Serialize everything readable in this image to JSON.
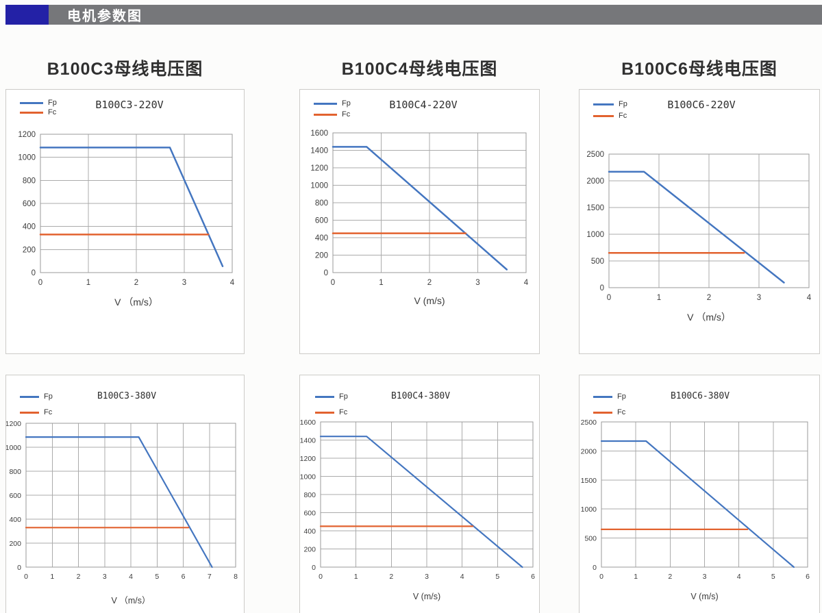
{
  "header": {
    "title": "电机参数图"
  },
  "section_titles": [
    "B100C3母线电压图",
    "B100C4母线电压图",
    "B100C6母线电压图"
  ],
  "colors": {
    "header_bar": "#76777a",
    "header_accent": "#2321a6",
    "fp": "#4476c0",
    "fc": "#e2622f",
    "grid": "#ababab",
    "plot_frame": "#9a9a9a",
    "axis_text": "#3c3c3c"
  },
  "chart_data": [
    {
      "type": "line",
      "title": "B100C3-220V",
      "xlabel": "V （m/s）",
      "grid": true,
      "legend_position": "top-left",
      "xlim": [
        0,
        4
      ],
      "xticks": [
        0,
        1,
        2,
        3,
        4
      ],
      "ylim": [
        0,
        1200
      ],
      "yticks": [
        0,
        200,
        400,
        600,
        800,
        1000,
        1200
      ],
      "series": [
        {
          "name": "Fp",
          "color": "#4476c0",
          "points": [
            [
              0,
              1085
            ],
            [
              2.7,
              1085
            ],
            [
              3.8,
              55
            ]
          ]
        },
        {
          "name": "Fc",
          "color": "#e2622f",
          "points": [
            [
              0,
              330
            ],
            [
              3.5,
              330
            ]
          ]
        }
      ]
    },
    {
      "type": "line",
      "title": "B100C4-220V",
      "xlabel": "V (m/s)",
      "grid": true,
      "legend_position": "top-left",
      "xlim": [
        0,
        4
      ],
      "xticks": [
        0,
        1,
        2,
        3,
        4
      ],
      "ylim": [
        0,
        1600
      ],
      "yticks": [
        0,
        200,
        400,
        600,
        800,
        1000,
        1200,
        1400,
        1600
      ],
      "series": [
        {
          "name": "Fp",
          "color": "#4476c0",
          "points": [
            [
              0,
              1440
            ],
            [
              0.7,
              1440
            ],
            [
              3.6,
              35
            ]
          ]
        },
        {
          "name": "Fc",
          "color": "#e2622f",
          "points": [
            [
              0,
              450
            ],
            [
              2.75,
              450
            ]
          ]
        }
      ]
    },
    {
      "type": "line",
      "title": "B100C6-220V",
      "xlabel": "V （m/s）",
      "grid": true,
      "legend_position": "top-left",
      "xlim": [
        0,
        4
      ],
      "xticks": [
        0,
        1,
        2,
        3,
        4
      ],
      "ylim": [
        0,
        2500
      ],
      "yticks": [
        0,
        500,
        1000,
        1500,
        2000,
        2500
      ],
      "series": [
        {
          "name": "Fp",
          "color": "#4476c0",
          "points": [
            [
              0,
              2170
            ],
            [
              0.7,
              2170
            ],
            [
              3.5,
              95
            ]
          ]
        },
        {
          "name": "Fc",
          "color": "#e2622f",
          "points": [
            [
              0,
              650
            ],
            [
              2.7,
              650
            ]
          ]
        }
      ]
    },
    {
      "type": "line",
      "title": "B100C3-380V",
      "xlabel": "V （m/s）",
      "grid": true,
      "legend_position": "top-left",
      "xlim": [
        0,
        8
      ],
      "xticks": [
        0,
        1,
        2,
        3,
        4,
        5,
        6,
        7,
        8
      ],
      "ylim": [
        0,
        1200
      ],
      "yticks": [
        0,
        200,
        400,
        600,
        800,
        1000,
        1200
      ],
      "series": [
        {
          "name": "Fp",
          "color": "#4476c0",
          "points": [
            [
              0,
              1085
            ],
            [
              4.3,
              1085
            ],
            [
              7.1,
              0
            ]
          ]
        },
        {
          "name": "Fc",
          "color": "#e2622f",
          "points": [
            [
              0,
              330
            ],
            [
              6.2,
              330
            ]
          ]
        }
      ]
    },
    {
      "type": "line",
      "title": "B100C4-380V",
      "xlabel": "V (m/s)",
      "grid": true,
      "legend_position": "top-left",
      "xlim": [
        0,
        6
      ],
      "xticks": [
        0,
        1,
        2,
        3,
        4,
        5,
        6
      ],
      "ylim": [
        0,
        1600
      ],
      "yticks": [
        0,
        200,
        400,
        600,
        800,
        1000,
        1200,
        1400,
        1600
      ],
      "series": [
        {
          "name": "Fp",
          "color": "#4476c0",
          "points": [
            [
              0,
              1440
            ],
            [
              1.3,
              1440
            ],
            [
              5.7,
              0
            ]
          ]
        },
        {
          "name": "Fc",
          "color": "#e2622f",
          "points": [
            [
              0,
              450
            ],
            [
              4.3,
              450
            ]
          ]
        }
      ]
    },
    {
      "type": "line",
      "title": "B100C6-380V",
      "xlabel": "V (m/s)",
      "grid": true,
      "legend_position": "top-left",
      "xlim": [
        0,
        6
      ],
      "xticks": [
        0,
        1,
        2,
        3,
        4,
        5,
        6
      ],
      "ylim": [
        0,
        2500
      ],
      "yticks": [
        0,
        500,
        1000,
        1500,
        2000,
        2500
      ],
      "series": [
        {
          "name": "Fp",
          "color": "#4476c0",
          "points": [
            [
              0,
              2170
            ],
            [
              1.3,
              2170
            ],
            [
              5.6,
              0
            ]
          ]
        },
        {
          "name": "Fc",
          "color": "#e2622f",
          "points": [
            [
              0,
              650
            ],
            [
              4.25,
              650
            ]
          ]
        }
      ]
    }
  ]
}
